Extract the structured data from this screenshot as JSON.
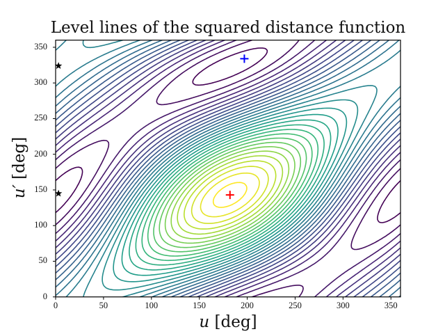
{
  "chart_data": {
    "type": "contour",
    "title": "Level lines of the squared distance function",
    "xlabel": "u [deg]",
    "ylabel": "u' [deg]",
    "xlim": [
      0,
      360
    ],
    "ylim": [
      0,
      360
    ],
    "xticks": [
      0,
      50,
      100,
      150,
      200,
      250,
      300,
      350
    ],
    "yticks": [
      0,
      50,
      100,
      150,
      200,
      250,
      300,
      350
    ],
    "colormap": "viridis",
    "grid": false,
    "legend": null,
    "center_extremum": {
      "u": 182,
      "u_prime": 143
    },
    "markers": [
      {
        "name": "red-plus",
        "shape": "+",
        "color": "#ff0000",
        "u": 182,
        "u_prime": 143
      },
      {
        "name": "blue-plus",
        "shape": "+",
        "color": "#0000ff",
        "u": 197,
        "u_prime": 334
      },
      {
        "name": "star-upper",
        "shape": "star",
        "color": "#000000",
        "u": 3,
        "u_prime": 324
      },
      {
        "name": "star-lower",
        "shape": "star",
        "color": "#000000",
        "u": 3,
        "u_prime": 145
      }
    ],
    "n_levels": 30
  },
  "labels": {
    "title": "Level lines of the squared distance function",
    "xlabel_var": "u",
    "xlabel_unit": " [deg]",
    "ylabel_var": "u′",
    "ylabel_unit": " [deg]",
    "xticks": [
      "0",
      "50",
      "100",
      "150",
      "200",
      "250",
      "300",
      "350"
    ],
    "yticks": [
      "0",
      "50",
      "100",
      "150",
      "200",
      "250",
      "300",
      "350"
    ]
  }
}
